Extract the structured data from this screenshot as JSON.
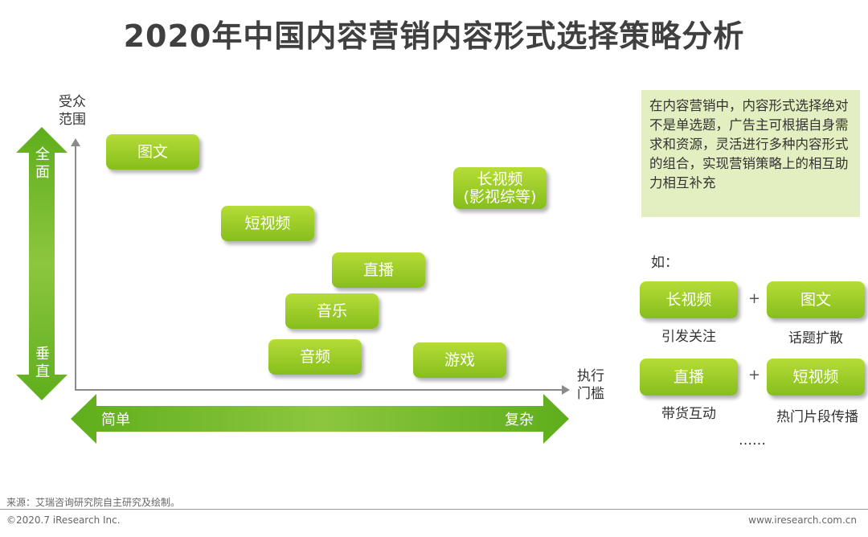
{
  "title": "2020年中国内容营销内容形式选择策略分析",
  "y_axis_label": "受众范围",
  "x_axis_label": "执行门槛",
  "vertical_arrow": {
    "top": "全面",
    "bottom": "垂直"
  },
  "horizontal_arrow": {
    "left": "简单",
    "right": "复杂"
  },
  "tags": {
    "tuwen": "图文",
    "duanshipin": "短视频",
    "changshipin_line1": "长视频",
    "changshipin_line2": "(影视综等)",
    "zhibo": "直播",
    "yinyue": "音乐",
    "yinpin": "音频",
    "youxi": "游戏"
  },
  "note": "在内容营销中，内容形式选择绝对不是单选题，广告主可根据自身需求和资源，灵活进行多种内容形式的组合，实现营销策略上的相互助力相互补充",
  "examples": {
    "label": "如：",
    "plus": "+",
    "row1": {
      "left": "长视频",
      "left_caption": "引发关注",
      "right": "图文",
      "right_caption": "话题扩散"
    },
    "row2": {
      "left": "直播",
      "left_caption": "带货互动",
      "right": "短视频",
      "right_caption": "热门片段传播"
    },
    "ellipsis": "……"
  },
  "footer": {
    "source": "来源：艾瑞咨询研究院自主研究及绘制。",
    "copyright": "©2020.7 iResearch Inc.",
    "website": "www.iresearch.com.cn"
  },
  "colors": {
    "green_light": "#b6dc37",
    "green_dark": "#86be1c",
    "note_bg": "#e3efc0"
  }
}
